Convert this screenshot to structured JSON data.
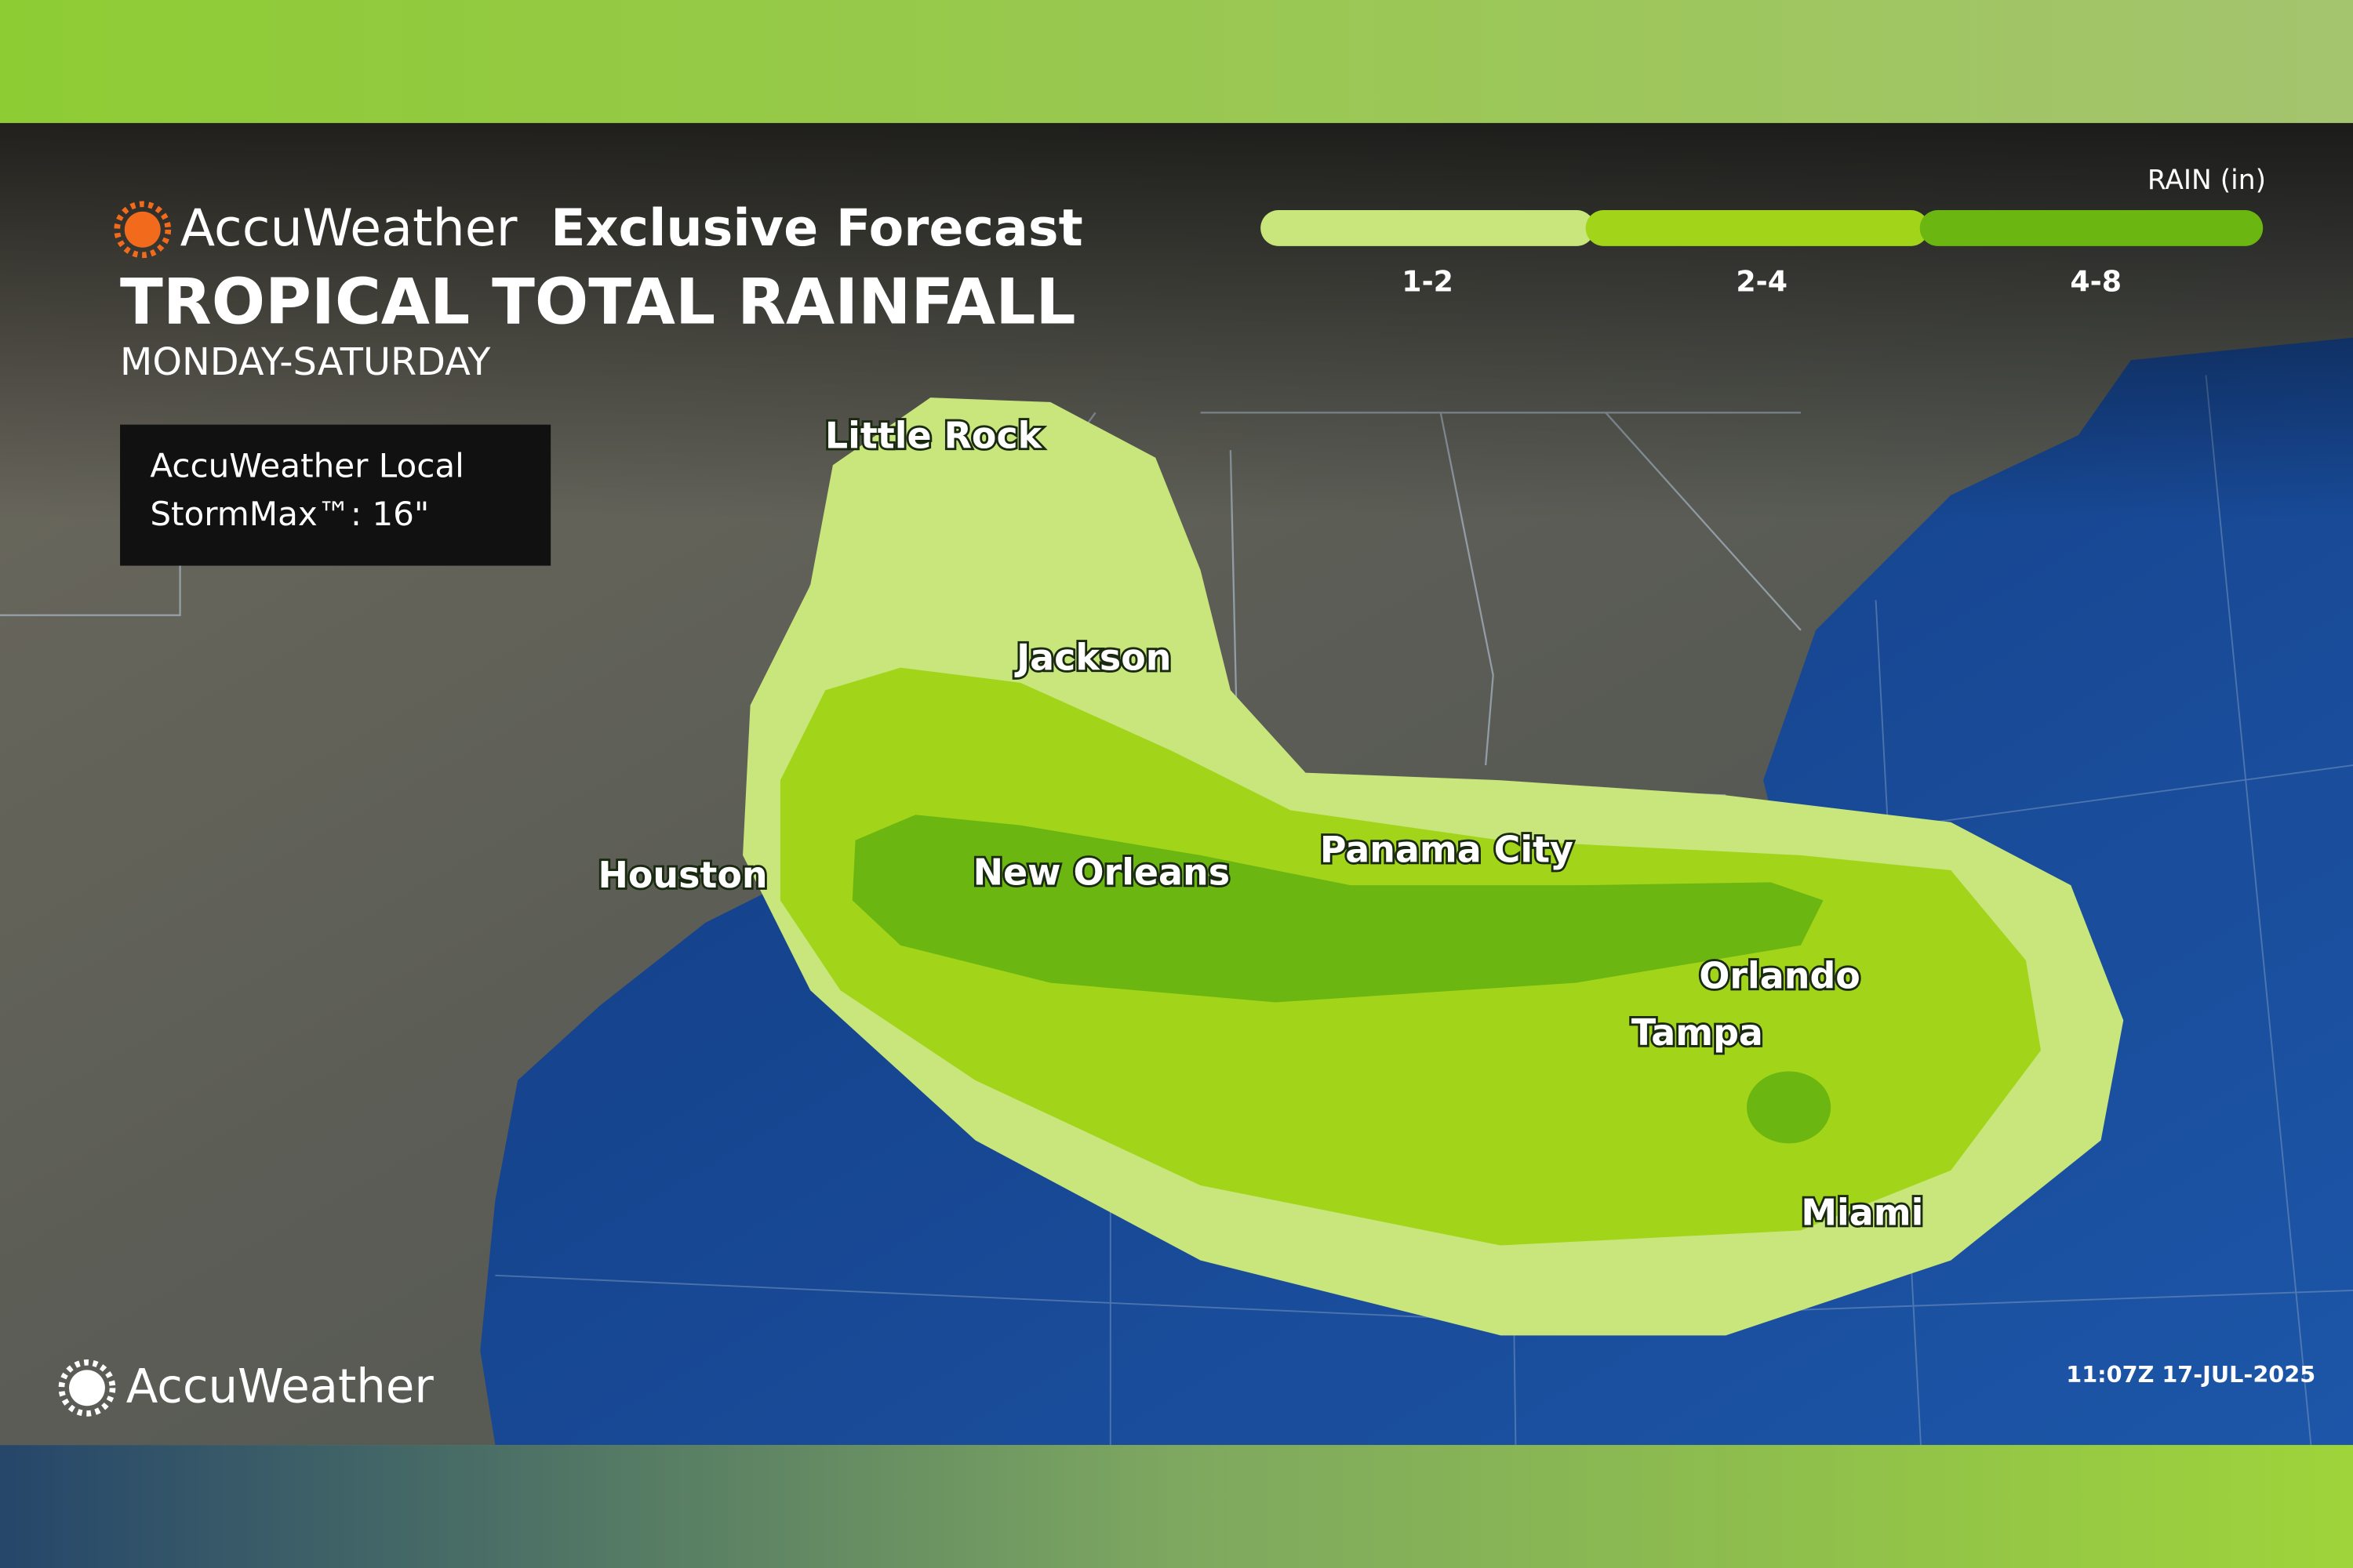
{
  "header": {
    "brand": "AccuWeather",
    "label": "Exclusive Forecast",
    "title": "TROPICAL TOTAL RAINFALL",
    "subtitle": "MONDAY-SATURDAY"
  },
  "stormmax": {
    "line1": "AccuWeather Local",
    "line2": "StormMax™: 16\""
  },
  "legend": {
    "title": "RAIN (in)",
    "items": [
      {
        "label": "1-2",
        "color": "#c8e67c"
      },
      {
        "label": "2-4",
        "color": "#a2d51a"
      },
      {
        "label": "4-8",
        "color": "#6cb612"
      }
    ]
  },
  "cities": [
    "Little Rock",
    "Jackson",
    "Houston",
    "New Orleans",
    "Panama City",
    "Orlando",
    "Tampa",
    "Miami"
  ],
  "timestamp": "11:07Z 17-JUL-2025",
  "footer": {
    "brand": "AccuWeather"
  }
}
